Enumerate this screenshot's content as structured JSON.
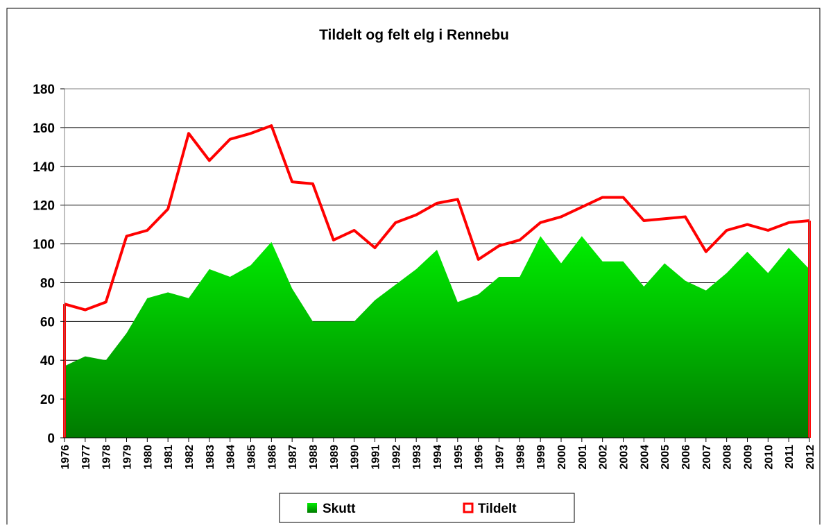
{
  "chart_data": {
    "type": "area",
    "title": "Tildelt og felt elg i Rennebu",
    "categories": [
      "1976",
      "1977",
      "1978",
      "1979",
      "1980",
      "1981",
      "1982",
      "1983",
      "1984",
      "1985",
      "1986",
      "1987",
      "1988",
      "1989",
      "1990",
      "1991",
      "1992",
      "1993",
      "1994",
      "1995",
      "1996",
      "1997",
      "1998",
      "1999",
      "2000",
      "2001",
      "2002",
      "2003",
      "2004",
      "2005",
      "2006",
      "2007",
      "2008",
      "2009",
      "2010",
      "2011",
      "2012"
    ],
    "series": [
      {
        "name": "Skutt",
        "color": "#00ee00",
        "filled": true,
        "values": [
          37,
          42,
          40,
          54,
          72,
          75,
          72,
          87,
          83,
          89,
          101,
          77,
          60,
          60,
          60,
          71,
          79,
          87,
          97,
          70,
          74,
          83,
          83,
          104,
          90,
          104,
          91,
          91,
          78,
          90,
          81,
          76,
          85,
          96,
          85,
          98,
          87
        ]
      },
      {
        "name": "Tildelt",
        "color": "#ff0000",
        "filled": false,
        "values": [
          69,
          66,
          70,
          104,
          107,
          118,
          157,
          143,
          154,
          157,
          161,
          132,
          131,
          102,
          107,
          98,
          111,
          115,
          121,
          123,
          92,
          99,
          102,
          111,
          114,
          119,
          124,
          124,
          112,
          113,
          114,
          96,
          107,
          110,
          107,
          111,
          112
        ]
      }
    ],
    "ylim": [
      0,
      180
    ],
    "yticks": [
      0,
      20,
      40,
      60,
      80,
      100,
      120,
      140,
      160,
      180
    ],
    "grid": true,
    "legend": "bottom"
  }
}
